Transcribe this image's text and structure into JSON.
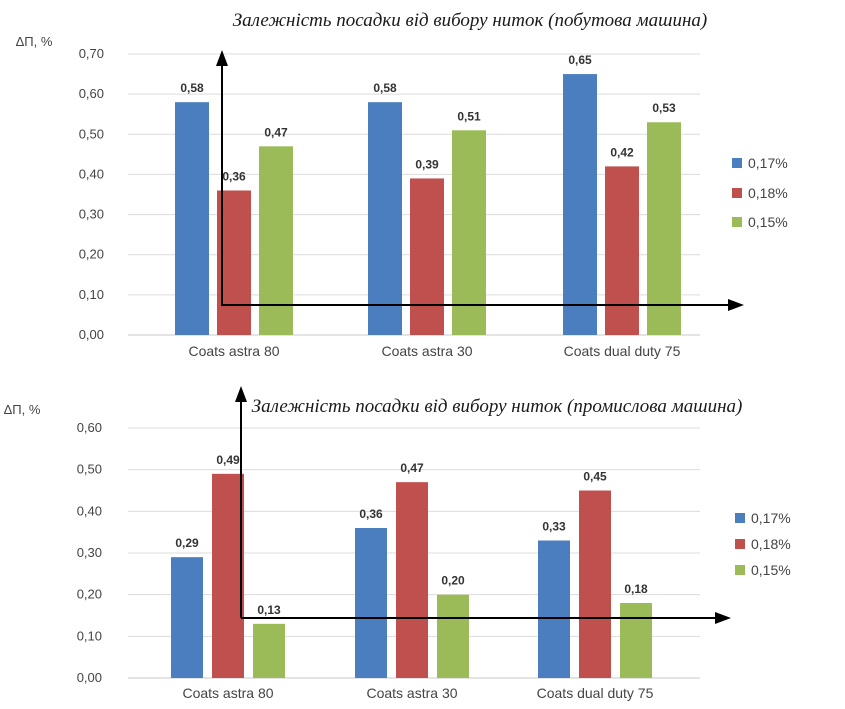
{
  "chart_data": [
    {
      "type": "bar",
      "title": "Залежність посадки від вибору ниток (побутова машина)",
      "ylabel": "ΔП, %",
      "xlabel": "",
      "categories": [
        "Coats astra 80",
        "Coats astra 30",
        "Coats dual duty 75"
      ],
      "series": [
        {
          "name": "0,17%",
          "color": "#4a7ebf",
          "values": [
            0.58,
            0.58,
            0.65
          ]
        },
        {
          "name": "0,18%",
          "color": "#c0504d",
          "values": [
            0.36,
            0.39,
            0.42
          ]
        },
        {
          "name": "0,15%",
          "color": "#9bbb59",
          "values": [
            0.47,
            0.51,
            0.53
          ]
        }
      ],
      "data_labels": [
        [
          "0,58",
          "0,58",
          "0,65"
        ],
        [
          "0,36",
          "0,39",
          "0,42"
        ],
        [
          "0,47",
          "0,51",
          "0,53"
        ]
      ],
      "yticks": [
        "0,00",
        "0,10",
        "0,20",
        "0,30",
        "0,40",
        "0,50",
        "0,60",
        "0,70"
      ],
      "ylim": [
        0,
        0.7
      ],
      "grid": true,
      "legend_position": "right"
    },
    {
      "type": "bar",
      "title": "Залежність посадки від вибору ниток (промислова машина)",
      "ylabel": "ΔП, %",
      "xlabel": "",
      "categories": [
        "Coats astra 80",
        "Coats astra 30",
        "Coats dual duty 75"
      ],
      "series": [
        {
          "name": "0,17%",
          "color": "#4a7ebf",
          "values": [
            0.29,
            0.36,
            0.33
          ]
        },
        {
          "name": "0,18%",
          "color": "#c0504d",
          "values": [
            0.49,
            0.47,
            0.45
          ]
        },
        {
          "name": "0,15%",
          "color": "#9bbb59",
          "values": [
            0.13,
            0.2,
            0.18
          ]
        }
      ],
      "data_labels": [
        [
          "0,29",
          "0,36",
          "0,33"
        ],
        [
          "0,49",
          "0,47",
          "0,45"
        ],
        [
          "0,13",
          "0,20",
          "0,18"
        ]
      ],
      "yticks": [
        "0,00",
        "0,10",
        "0,20",
        "0,30",
        "0,40",
        "0,50",
        "0,60"
      ],
      "ylim": [
        0,
        0.6
      ],
      "grid": true,
      "legend_position": "right"
    }
  ]
}
